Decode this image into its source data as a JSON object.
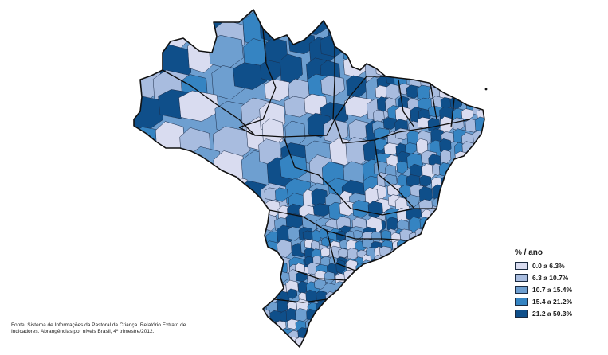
{
  "legend": {
    "title": "% / ano",
    "classes": [
      {
        "label": "0.0 a 6.3%",
        "color": "#d9dcf0"
      },
      {
        "label": "6.3 a 10.7%",
        "color": "#a8bcdf"
      },
      {
        "label": "10.7 a 15.4%",
        "color": "#6e9fd0"
      },
      {
        "label": "15.4 a 21.2%",
        "color": "#3584c2"
      },
      {
        "label": "21.2 a 50.3%",
        "color": "#0f4f8a"
      }
    ]
  },
  "source": {
    "line1": "Fonte: Sistema de Informações da Pastoral da Criança. Relatório Extrato de",
    "line2": "Indicadores. Abrangências por níveis Brasil, 4º trimestre/2012."
  },
  "map": {
    "region": "Brasil",
    "fill_classes_in_use": [
      0,
      1,
      2,
      3,
      4
    ]
  }
}
